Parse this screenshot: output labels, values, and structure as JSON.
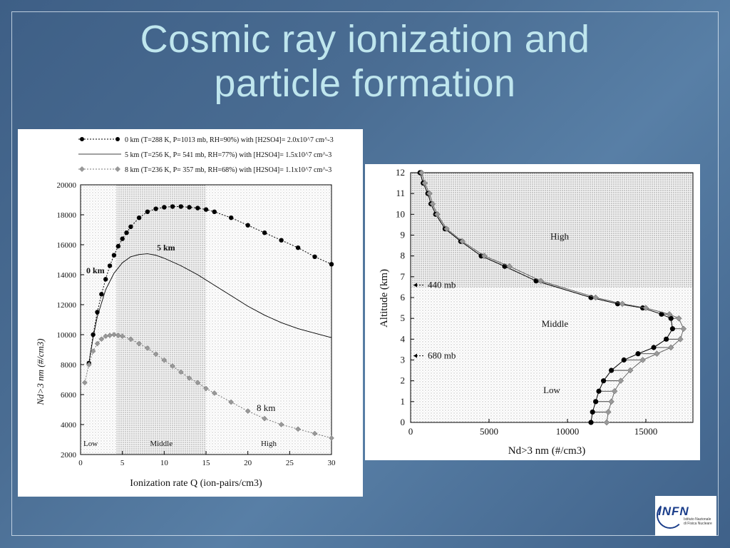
{
  "slide": {
    "title_line1": "Cosmic ray ionization and",
    "title_line2": "particle formation"
  },
  "logo": {
    "text": "INFN",
    "subtitle_line1": "Istituto Nazionale",
    "subtitle_line2": "di Fisica Nucleare"
  },
  "chart_data": [
    {
      "type": "line",
      "legend": [
        "0 km (T=288 K, P=1013 mb, RH=90%) with [H2SO4]= 2.0x10^7 cm^-3",
        "5 km (T=256 K, P= 541 mb, RH=77%) with [H2SO4]= 1.5x10^7 cm^-3",
        "8 km (T=236 K, P= 357 mb, RH=68%) with [H2SO4]= 1.1x10^7 cm^-3"
      ],
      "xlabel": "Ionization rate Q (ion-pairs/cm3)",
      "ylabel": "Nd>3 nm (#/cm3)",
      "xlim": [
        0,
        30
      ],
      "ylim": [
        2000,
        20000
      ],
      "xticks": [
        0,
        5,
        10,
        15,
        20,
        25,
        30
      ],
      "yticks": [
        2000,
        4000,
        6000,
        8000,
        10000,
        12000,
        14000,
        16000,
        18000,
        20000
      ],
      "regions": [
        {
          "label": "Low",
          "from": 0,
          "to": 4.3
        },
        {
          "label": "Middle",
          "from": 4.3,
          "to": 15
        },
        {
          "label": "High",
          "from": 15,
          "to": 30
        }
      ],
      "curve_labels": [
        "0 km",
        "5 km",
        "8 km"
      ],
      "series": [
        {
          "name": "0 km",
          "marker": "circle",
          "x": [
            1,
            1.5,
            2,
            2.5,
            3,
            3.5,
            4,
            4.5,
            5,
            5.5,
            6,
            7,
            8,
            9,
            10,
            11,
            12,
            13,
            14,
            15,
            16,
            18,
            20,
            22,
            24,
            26,
            28,
            30
          ],
          "y": [
            8100,
            10000,
            11500,
            12700,
            13700,
            14600,
            15300,
            15900,
            16400,
            16800,
            17200,
            17800,
            18200,
            18400,
            18500,
            18550,
            18550,
            18500,
            18450,
            18350,
            18200,
            17800,
            17300,
            16800,
            16300,
            15800,
            15200,
            14700
          ]
        },
        {
          "name": "5 km",
          "x": [
            1,
            1.5,
            2,
            3,
            4,
            5,
            6,
            7,
            8,
            9,
            10,
            12,
            14,
            16,
            18,
            20,
            22,
            24,
            26,
            28,
            30
          ],
          "y": [
            8100,
            9800,
            11200,
            13000,
            14100,
            14800,
            15200,
            15350,
            15400,
            15300,
            15100,
            14600,
            14000,
            13300,
            12600,
            11900,
            11300,
            10800,
            10400,
            10100,
            9800
          ]
        },
        {
          "name": "8 km",
          "marker": "diamond",
          "x": [
            0.5,
            1,
            1.5,
            2,
            2.5,
            3,
            3.5,
            4,
            4.5,
            5,
            6,
            7,
            8,
            9,
            10,
            11,
            12,
            13,
            14,
            15,
            16,
            18,
            20,
            22,
            24,
            26,
            28,
            30
          ],
          "y": [
            6800,
            8000,
            8900,
            9400,
            9700,
            9900,
            9950,
            10000,
            9950,
            9900,
            9700,
            9400,
            9100,
            8700,
            8300,
            7900,
            7500,
            7100,
            6800,
            6400,
            6100,
            5500,
            4900,
            4400,
            4000,
            3700,
            3400,
            3100
          ]
        }
      ]
    },
    {
      "type": "line",
      "xlabel": "Nd>3 nm (#/cm3)",
      "ylabel": "Altitude (km)",
      "xlim": [
        0,
        18000
      ],
      "ylim": [
        0,
        12
      ],
      "xticks": [
        0,
        5000,
        10000,
        15000
      ],
      "yticks": [
        0,
        1,
        2,
        3,
        4,
        5,
        6,
        7,
        8,
        9,
        10,
        11,
        12
      ],
      "regions": [
        {
          "label": "Low",
          "from": 0,
          "to": 3.2
        },
        {
          "label": "Middle",
          "from": 3.2,
          "to": 6.5
        },
        {
          "label": "High",
          "from": 6.5,
          "to": 12
        }
      ],
      "annotations": [
        {
          "text": "440 mb",
          "altitude": 6.6
        },
        {
          "text": "680 mb",
          "altitude": 3.2
        }
      ],
      "series": [
        {
          "marker": "circle",
          "x": [
            11500,
            11600,
            11800,
            12000,
            12300,
            12800,
            13600,
            14500,
            15500,
            16300,
            16700,
            16600,
            16000,
            14800,
            13200,
            11500,
            8000,
            6000,
            4500,
            3200,
            2200,
            1600,
            1300,
            1100,
            800,
            600
          ],
          "y": [
            0,
            0.5,
            1,
            1.5,
            2,
            2.5,
            3,
            3.3,
            3.6,
            4,
            4.5,
            5,
            5.2,
            5.5,
            5.7,
            6,
            6.8,
            7.5,
            8,
            8.7,
            9.3,
            10,
            10.5,
            11,
            11.5,
            12
          ]
        },
        {
          "marker": "diamond",
          "x": [
            12500,
            12600,
            12800,
            13000,
            13400,
            14000,
            14800,
            15700,
            16600,
            17200,
            17400,
            17100,
            16500,
            15000,
            13500,
            11800,
            8300,
            6300,
            4700,
            3300,
            2300,
            1700,
            1400,
            1200,
            900,
            700
          ],
          "y": [
            0,
            0.5,
            1,
            1.5,
            2,
            2.5,
            3,
            3.3,
            3.6,
            4,
            4.5,
            5,
            5.2,
            5.5,
            5.7,
            6,
            6.8,
            7.5,
            8,
            8.7,
            9.3,
            10,
            10.5,
            11,
            11.5,
            12
          ]
        }
      ]
    }
  ]
}
